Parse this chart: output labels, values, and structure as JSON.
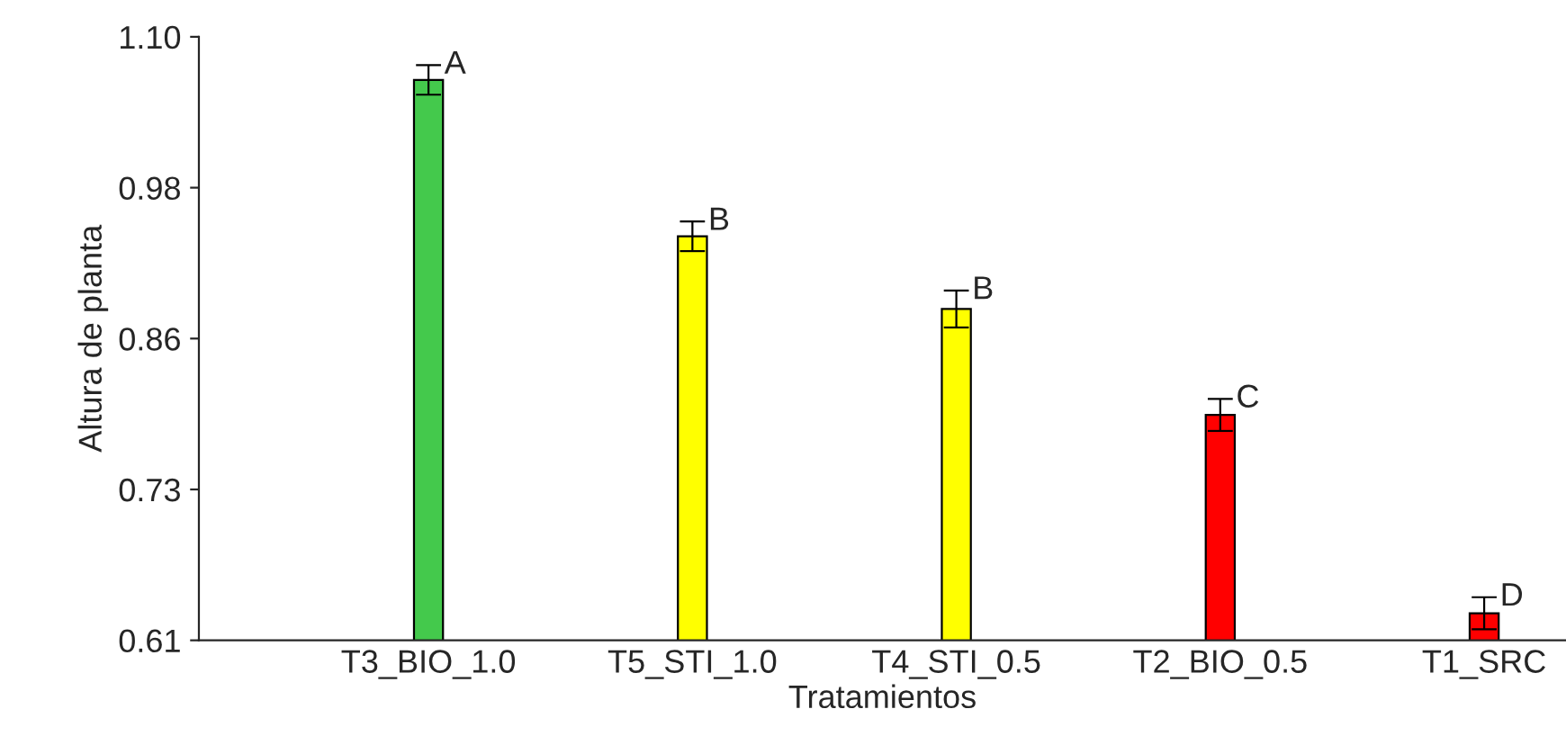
{
  "chart_data": {
    "type": "bar",
    "xlabel": "Tratamientos",
    "ylabel": "Altura de planta",
    "categories": [
      "T3_BIO_1.0",
      "T5_STI_1.0",
      "T4_STI_0.5",
      "T2_BIO_0.5",
      "T1_SRC"
    ],
    "values": [
      1.065,
      0.938,
      0.879,
      0.793,
      0.632
    ],
    "colors": [
      "#44c94c",
      "#ffff00",
      "#ffff00",
      "#ff0000",
      "#ff0000"
    ],
    "errors": [
      0.012,
      0.012,
      0.015,
      0.013,
      0.013
    ],
    "ylim": [
      0.61,
      1.1
    ],
    "yticks": [
      0.61,
      {
        "value": 0.7325,
        "label": "0.73"
      },
      {
        "value": 0.855,
        "label": "0.86"
      },
      {
        "value": 0.9775,
        "label": "0.98"
      },
      {
        "value": 1.1,
        "label": "1.10"
      }
    ],
    "grid": false,
    "legend": false,
    "annotations": [
      "A",
      "B",
      "B",
      "C",
      "D"
    ]
  }
}
